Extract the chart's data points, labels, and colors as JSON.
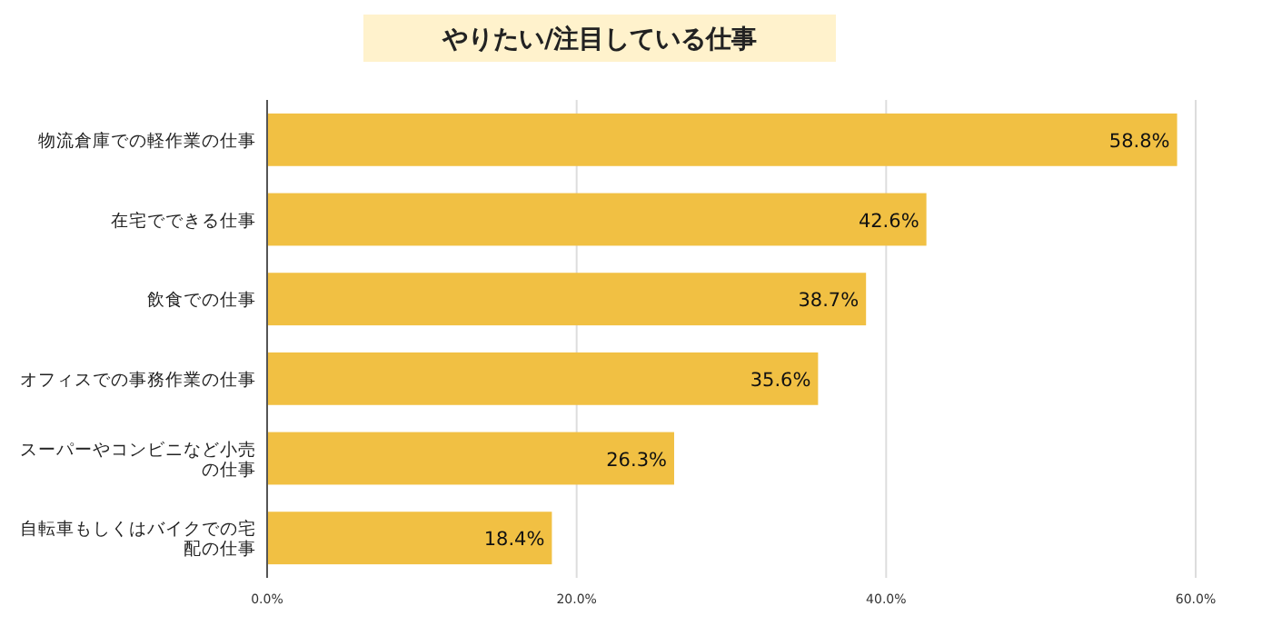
{
  "chart_data": {
    "type": "bar",
    "orientation": "horizontal",
    "title": "やりたい/注目している仕事",
    "categories": [
      "物流倉庫での軽作業の仕事",
      "在宅でできる仕事",
      "飲食での仕事",
      "オフィスでの事務作業の仕事",
      "スーパーやコンビニなど小売の仕事",
      "自転車もしくはバイクでの宅配の仕事"
    ],
    "values": [
      58.8,
      42.6,
      38.7,
      35.6,
      26.3,
      18.4
    ],
    "value_labels": [
      "58.8%",
      "42.6%",
      "38.7%",
      "35.6%",
      "26.3%",
      "18.4%"
    ],
    "color": "#f1c043",
    "xlim": [
      0,
      60
    ],
    "xticks": [
      {
        "value": 0,
        "label": "0.0%"
      },
      {
        "value": 20,
        "label": "20.0%"
      },
      {
        "value": 40,
        "label": "40.0%"
      },
      {
        "value": 60,
        "label": "60.0%"
      }
    ],
    "grid": "x"
  }
}
